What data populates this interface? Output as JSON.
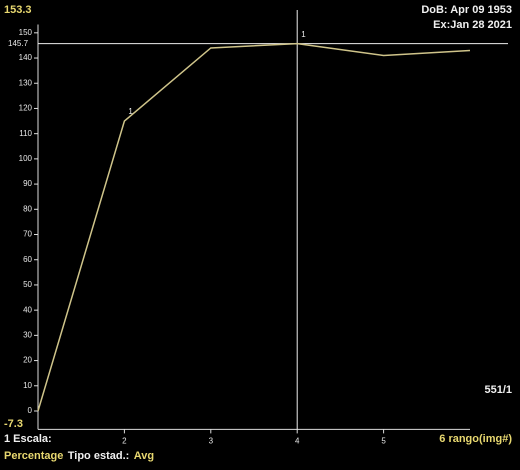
{
  "chart_data": {
    "type": "line",
    "x": [
      1,
      2,
      3,
      4,
      5,
      6
    ],
    "values": [
      0,
      115,
      144,
      145.7,
      141,
      143
    ],
    "point_labels": [
      null,
      "1",
      null,
      "1",
      null,
      null
    ],
    "color": "#cfc48a",
    "xlim": [
      1,
      6
    ],
    "xticks": [
      2,
      3,
      4,
      5
    ],
    "ylim": [
      -7.3,
      153.3
    ],
    "yticks": [
      0,
      10,
      20,
      30,
      40,
      50,
      60,
      70,
      80,
      90,
      100,
      110,
      120,
      130,
      140,
      150
    ],
    "hline": 145.7,
    "vline": 4,
    "dob": "DoB: Apr 09 1953",
    "exam": "Ex:Jan 28 2021",
    "image_id": "551/1",
    "scale": "1 Escala:",
    "unit": "Percentage",
    "stat_label": "Tipo estad.:",
    "stat": "Avg",
    "x_label": "6 rango(img#)"
  }
}
